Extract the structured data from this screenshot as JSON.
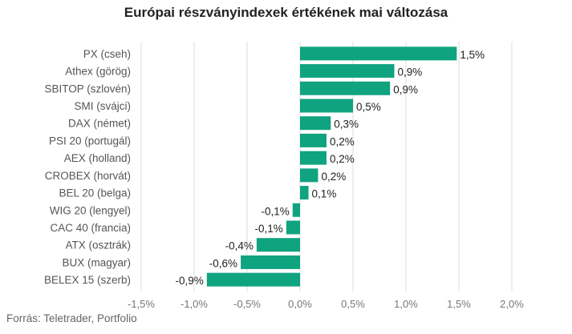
{
  "chart_data": {
    "type": "bar",
    "orientation": "horizontal",
    "title": "Európai részványindexek értékének mai változása",
    "categories": [
      "PX (cseh)",
      "Athex (görög)",
      "SBITOP (szlovén)",
      "SMI (svájci)",
      "DAX (német)",
      "PSI 20 (portugál)",
      "AEX (holland)",
      "CROBEX (horvát)",
      "BEL 20 (belga)",
      "WIG 20 (lengyel)",
      "CAC 40 (francia)",
      "ATX (osztrák)",
      "BUX (magyar)",
      "BELEX 15 (szerb)"
    ],
    "values": [
      1.48,
      0.89,
      0.85,
      0.5,
      0.29,
      0.25,
      0.25,
      0.17,
      0.08,
      -0.07,
      -0.13,
      -0.41,
      -0.56,
      -0.88
    ],
    "value_labels": [
      "1,5%",
      "0,9%",
      "0,9%",
      "0,5%",
      "0,3%",
      "0,2%",
      "0,2%",
      "0,2%",
      "0,1%",
      "-0,1%",
      "-0,1%",
      "-0,4%",
      "-0,6%",
      "-0,9%"
    ],
    "x_ticks": [
      -1.5,
      -1.0,
      -0.5,
      0.0,
      0.5,
      1.0,
      1.5,
      2.0
    ],
    "x_tick_labels": [
      "-1,5%",
      "-1,0%",
      "-0,5%",
      "0,0%",
      "0,5%",
      "1,0%",
      "1,5%",
      "2,0%"
    ],
    "xlim": [
      -1.5,
      2.0
    ],
    "bar_color": "#0fa37f",
    "grid": "vertical",
    "legend": "none"
  },
  "source": "Forrás: Teletrader, Portfolio"
}
